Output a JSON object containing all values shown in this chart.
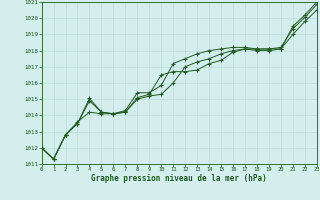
{
  "title": "Graphe pression niveau de la mer (hPa)",
  "bg_color": "#d4eeee",
  "grid_color": "#b8d8d8",
  "line_color": "#1e5c1e",
  "xlim": [
    0,
    23
  ],
  "ylim": [
    1011,
    1021
  ],
  "xticks": [
    0,
    1,
    2,
    3,
    4,
    5,
    6,
    7,
    8,
    9,
    10,
    11,
    12,
    13,
    14,
    15,
    16,
    17,
    18,
    19,
    20,
    21,
    22,
    23
  ],
  "yticks": [
    1011,
    1012,
    1013,
    1014,
    1015,
    1016,
    1017,
    1018,
    1019,
    1020,
    1021
  ],
  "line1": [
    1012.0,
    1011.3,
    1012.8,
    1013.5,
    1014.9,
    1014.2,
    1014.1,
    1014.2,
    1015.0,
    1015.2,
    1015.3,
    1016.0,
    1017.0,
    1017.3,
    1017.5,
    1017.8,
    1018.0,
    1018.1,
    1018.0,
    1018.0,
    1018.1,
    1019.5,
    1020.2,
    1021.0
  ],
  "line2": [
    1012.0,
    1011.3,
    1012.8,
    1013.5,
    1015.05,
    1014.2,
    1014.1,
    1014.3,
    1015.4,
    1015.4,
    1015.85,
    1017.2,
    1017.5,
    1017.8,
    1018.0,
    1018.1,
    1018.2,
    1018.2,
    1018.1,
    1018.1,
    1018.2,
    1019.35,
    1020.05,
    1020.85
  ],
  "line3": [
    1012.0,
    1011.3,
    1012.8,
    1013.6,
    1014.2,
    1014.1,
    1014.1,
    1014.2,
    1015.1,
    1015.3,
    1016.5,
    1016.7,
    1016.7,
    1016.8,
    1017.2,
    1017.4,
    1017.9,
    1018.1,
    1018.1,
    1018.1,
    1018.1,
    1019.0,
    1019.8,
    1020.5
  ]
}
